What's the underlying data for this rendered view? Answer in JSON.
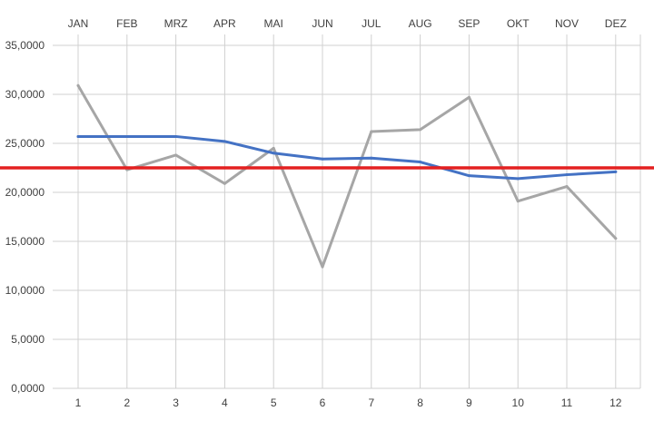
{
  "chart_data": {
    "type": "line",
    "x": [
      1,
      2,
      3,
      4,
      5,
      6,
      7,
      8,
      9,
      10,
      11,
      12
    ],
    "month_labels": [
      "JAN",
      "FEB",
      "MRZ",
      "APR",
      "MAI",
      "JUN",
      "JUL",
      "AUG",
      "SEP",
      "OKT",
      "NOV",
      "DEZ"
    ],
    "ylim": [
      0,
      35000
    ],
    "yticks": [
      0,
      5000,
      10000,
      15000,
      20000,
      25000,
      30000,
      35000
    ],
    "ytick_labels": [
      "0,0000",
      "5,0000",
      "10,0000",
      "15,0000",
      "20,0000",
      "25,0000",
      "30,0000",
      "35,0000"
    ],
    "grid": true,
    "series": [
      {
        "color": "#a6a6a6",
        "values": [
          30900,
          22300,
          23800,
          20900,
          24500,
          12400,
          26200,
          26400,
          29700,
          19100,
          20600,
          15300
        ]
      },
      {
        "color": "#4472c4",
        "values": [
          25700,
          25700,
          25700,
          25200,
          24000,
          23400,
          23500,
          23100,
          21700,
          21400,
          21800,
          22100
        ]
      },
      {
        "color": "#e32020",
        "values": [
          22500,
          22500,
          22500,
          22500,
          22500,
          22500,
          22500,
          22500,
          22500,
          22500,
          22500,
          22500
        ]
      }
    ]
  }
}
